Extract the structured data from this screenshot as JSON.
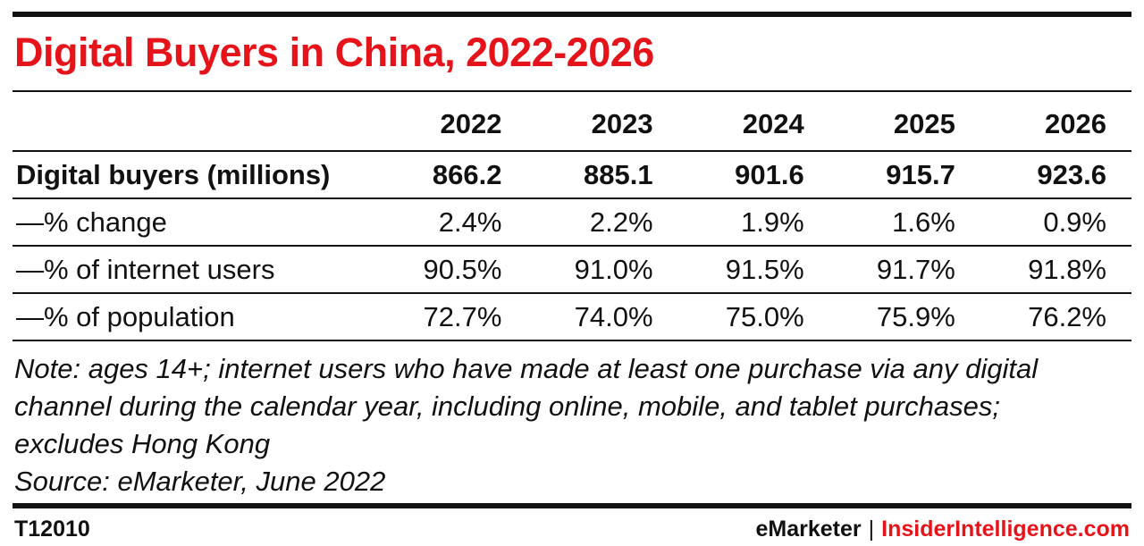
{
  "title": "Digital Buyers in China, 2022-2026",
  "chart_data": {
    "type": "table",
    "title": "Digital Buyers in China, 2022-2026",
    "columns": [
      "2022",
      "2023",
      "2024",
      "2025",
      "2026"
    ],
    "rows": [
      {
        "label": "Digital buyers (millions)",
        "bold": true,
        "values": [
          "866.2",
          "885.1",
          "901.6",
          "915.7",
          "923.6"
        ]
      },
      {
        "label": "—% change",
        "bold": false,
        "values": [
          "2.4%",
          "2.2%",
          "1.9%",
          "1.6%",
          "0.9%"
        ]
      },
      {
        "label": "—% of internet users",
        "bold": false,
        "values": [
          "90.5%",
          "91.0%",
          "91.5%",
          "91.7%",
          "91.8%"
        ]
      },
      {
        "label": "—% of population",
        "bold": false,
        "values": [
          "72.7%",
          "74.0%",
          "75.0%",
          "75.9%",
          "76.2%"
        ]
      }
    ]
  },
  "note": {
    "text": "Note: ages 14+; internet users who have made at least one purchase via any digital channel during the calendar year, including online, mobile, and tablet purchases; excludes Hong Kong",
    "source": "Source: eMarketer, June 2022"
  },
  "footer": {
    "id": "T12010",
    "brand_primary": "eMarketer",
    "separator": "|",
    "brand_secondary": "InsiderIntelligence.com"
  },
  "colors": {
    "accent": "#e5141b",
    "text": "#111111",
    "rules": "#111111"
  }
}
